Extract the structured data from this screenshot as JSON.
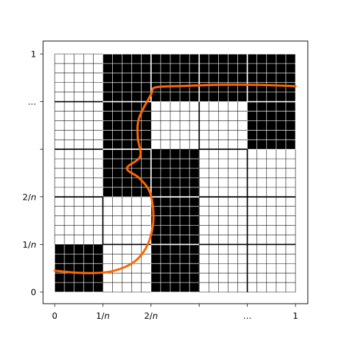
{
  "figure": {
    "x_ticks": [
      "0",
      "1/n",
      "2/n",
      "",
      "…",
      "1"
    ],
    "y_ticks": [
      "0",
      "1/n",
      "2/n",
      "",
      "…",
      "1"
    ],
    "n_blocks": 5,
    "fine_subdivisions": 5,
    "black_blocks": [
      [
        0,
        0
      ],
      [
        2,
        0
      ],
      [
        2,
        1
      ],
      [
        1,
        2
      ],
      [
        2,
        2
      ],
      [
        1,
        3
      ],
      [
        4,
        3
      ],
      [
        1,
        4
      ],
      [
        2,
        4
      ],
      [
        3,
        4
      ],
      [
        4,
        4
      ]
    ],
    "curve_color": "#ff6600",
    "curve_points": [
      [
        0.0,
        0.09
      ],
      [
        0.08,
        0.082
      ],
      [
        0.16,
        0.08
      ],
      [
        0.24,
        0.088
      ],
      [
        0.32,
        0.12
      ],
      [
        0.37,
        0.17
      ],
      [
        0.4,
        0.24
      ],
      [
        0.41,
        0.32
      ],
      [
        0.395,
        0.42
      ],
      [
        0.35,
        0.48
      ],
      [
        0.3,
        0.52
      ],
      [
        0.355,
        0.57
      ],
      [
        0.345,
        0.65
      ],
      [
        0.35,
        0.73
      ],
      [
        0.4,
        0.83
      ],
      [
        0.42,
        0.86
      ],
      [
        0.54,
        0.866
      ],
      [
        0.7,
        0.871
      ],
      [
        0.86,
        0.87
      ],
      [
        1.0,
        0.865
      ]
    ]
  }
}
